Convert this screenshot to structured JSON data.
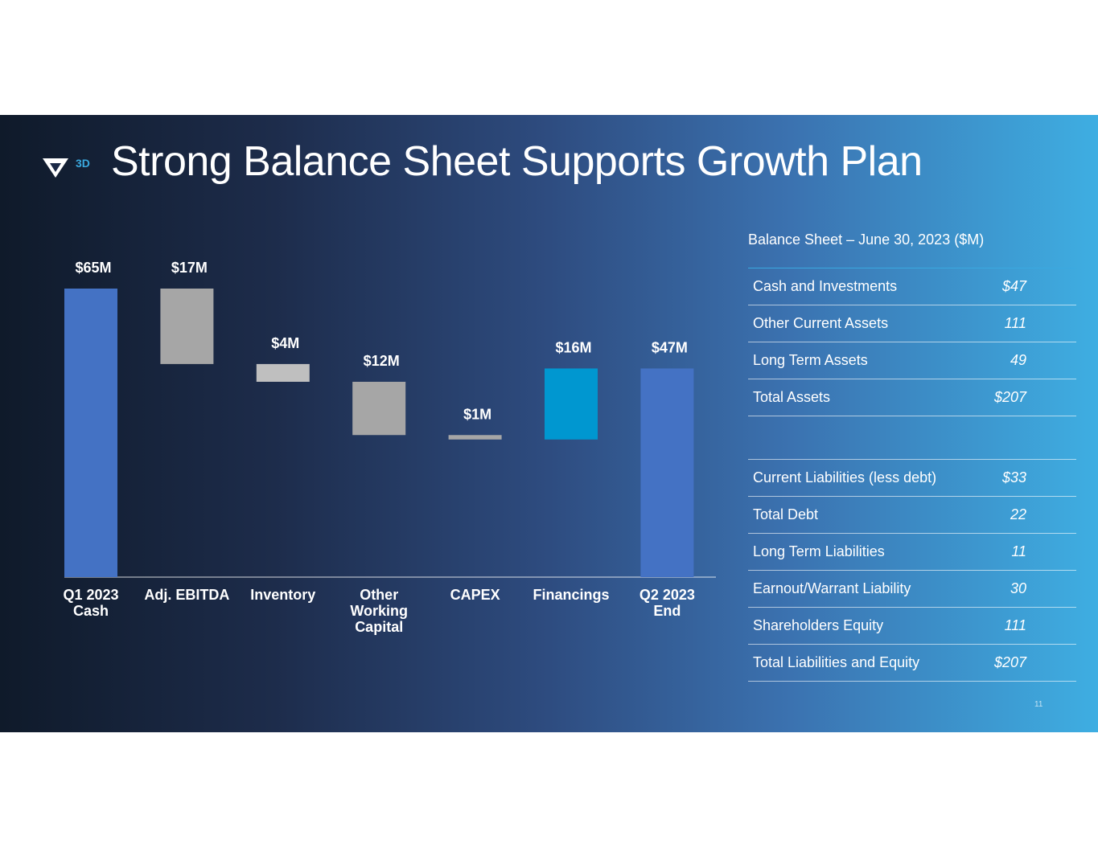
{
  "title": "Strong Balance Sheet Supports Growth Plan",
  "logo": {
    "text": "3D",
    "icon": "v3d-logo-icon"
  },
  "page_number": "11",
  "colors": {
    "blue_bar": "#4472c4",
    "gray_bar": "#a6a6a6",
    "light_gray_bar": "#bfbfbf",
    "financing_bar": "#0097d0",
    "accent": "#3aa9e0"
  },
  "chart_data": {
    "type": "bar",
    "subtype": "waterfall",
    "categories": [
      "Q1 2023\nCash",
      "Adj. EBITDA",
      "Inventory",
      "Other\nWorking\nCapital",
      "CAPEX",
      "Financings",
      "Q2 2023\nEnd"
    ],
    "values": [
      65,
      -17,
      -4,
      -12,
      -1,
      16,
      47
    ],
    "data_labels": [
      "$65M",
      "$17M",
      "$4M",
      "$12M",
      "$1M",
      "$16M",
      "$47M"
    ],
    "bar_colors": [
      "#4472c4",
      "#a6a6a6",
      "#bfbfbf",
      "#a6a6a6",
      "#a6a6a6",
      "#0097d0",
      "#4472c4"
    ],
    "ylim": [
      0,
      65
    ],
    "grid": false,
    "legend": "none"
  },
  "balance_sheet": {
    "caption": "Balance Sheet – June 30, 2023 ($M)",
    "assets": [
      {
        "label": "Cash and Investments",
        "value": "$47"
      },
      {
        "label": "Other Current Assets",
        "value": "111"
      },
      {
        "label": "Long Term Assets",
        "value": "49"
      },
      {
        "label": "Total Assets",
        "value": "$207"
      }
    ],
    "liabilities": [
      {
        "label": "Current Liabilities (less debt)",
        "value": "$33"
      },
      {
        "label": "Total Debt",
        "value": "22"
      },
      {
        "label": "Long Term Liabilities",
        "value": "11"
      },
      {
        "label": "Earnout/Warrant Liability",
        "value": "30"
      },
      {
        "label": "Shareholders Equity",
        "value": "111"
      },
      {
        "label": "Total Liabilities and Equity",
        "value": "$207"
      }
    ]
  }
}
